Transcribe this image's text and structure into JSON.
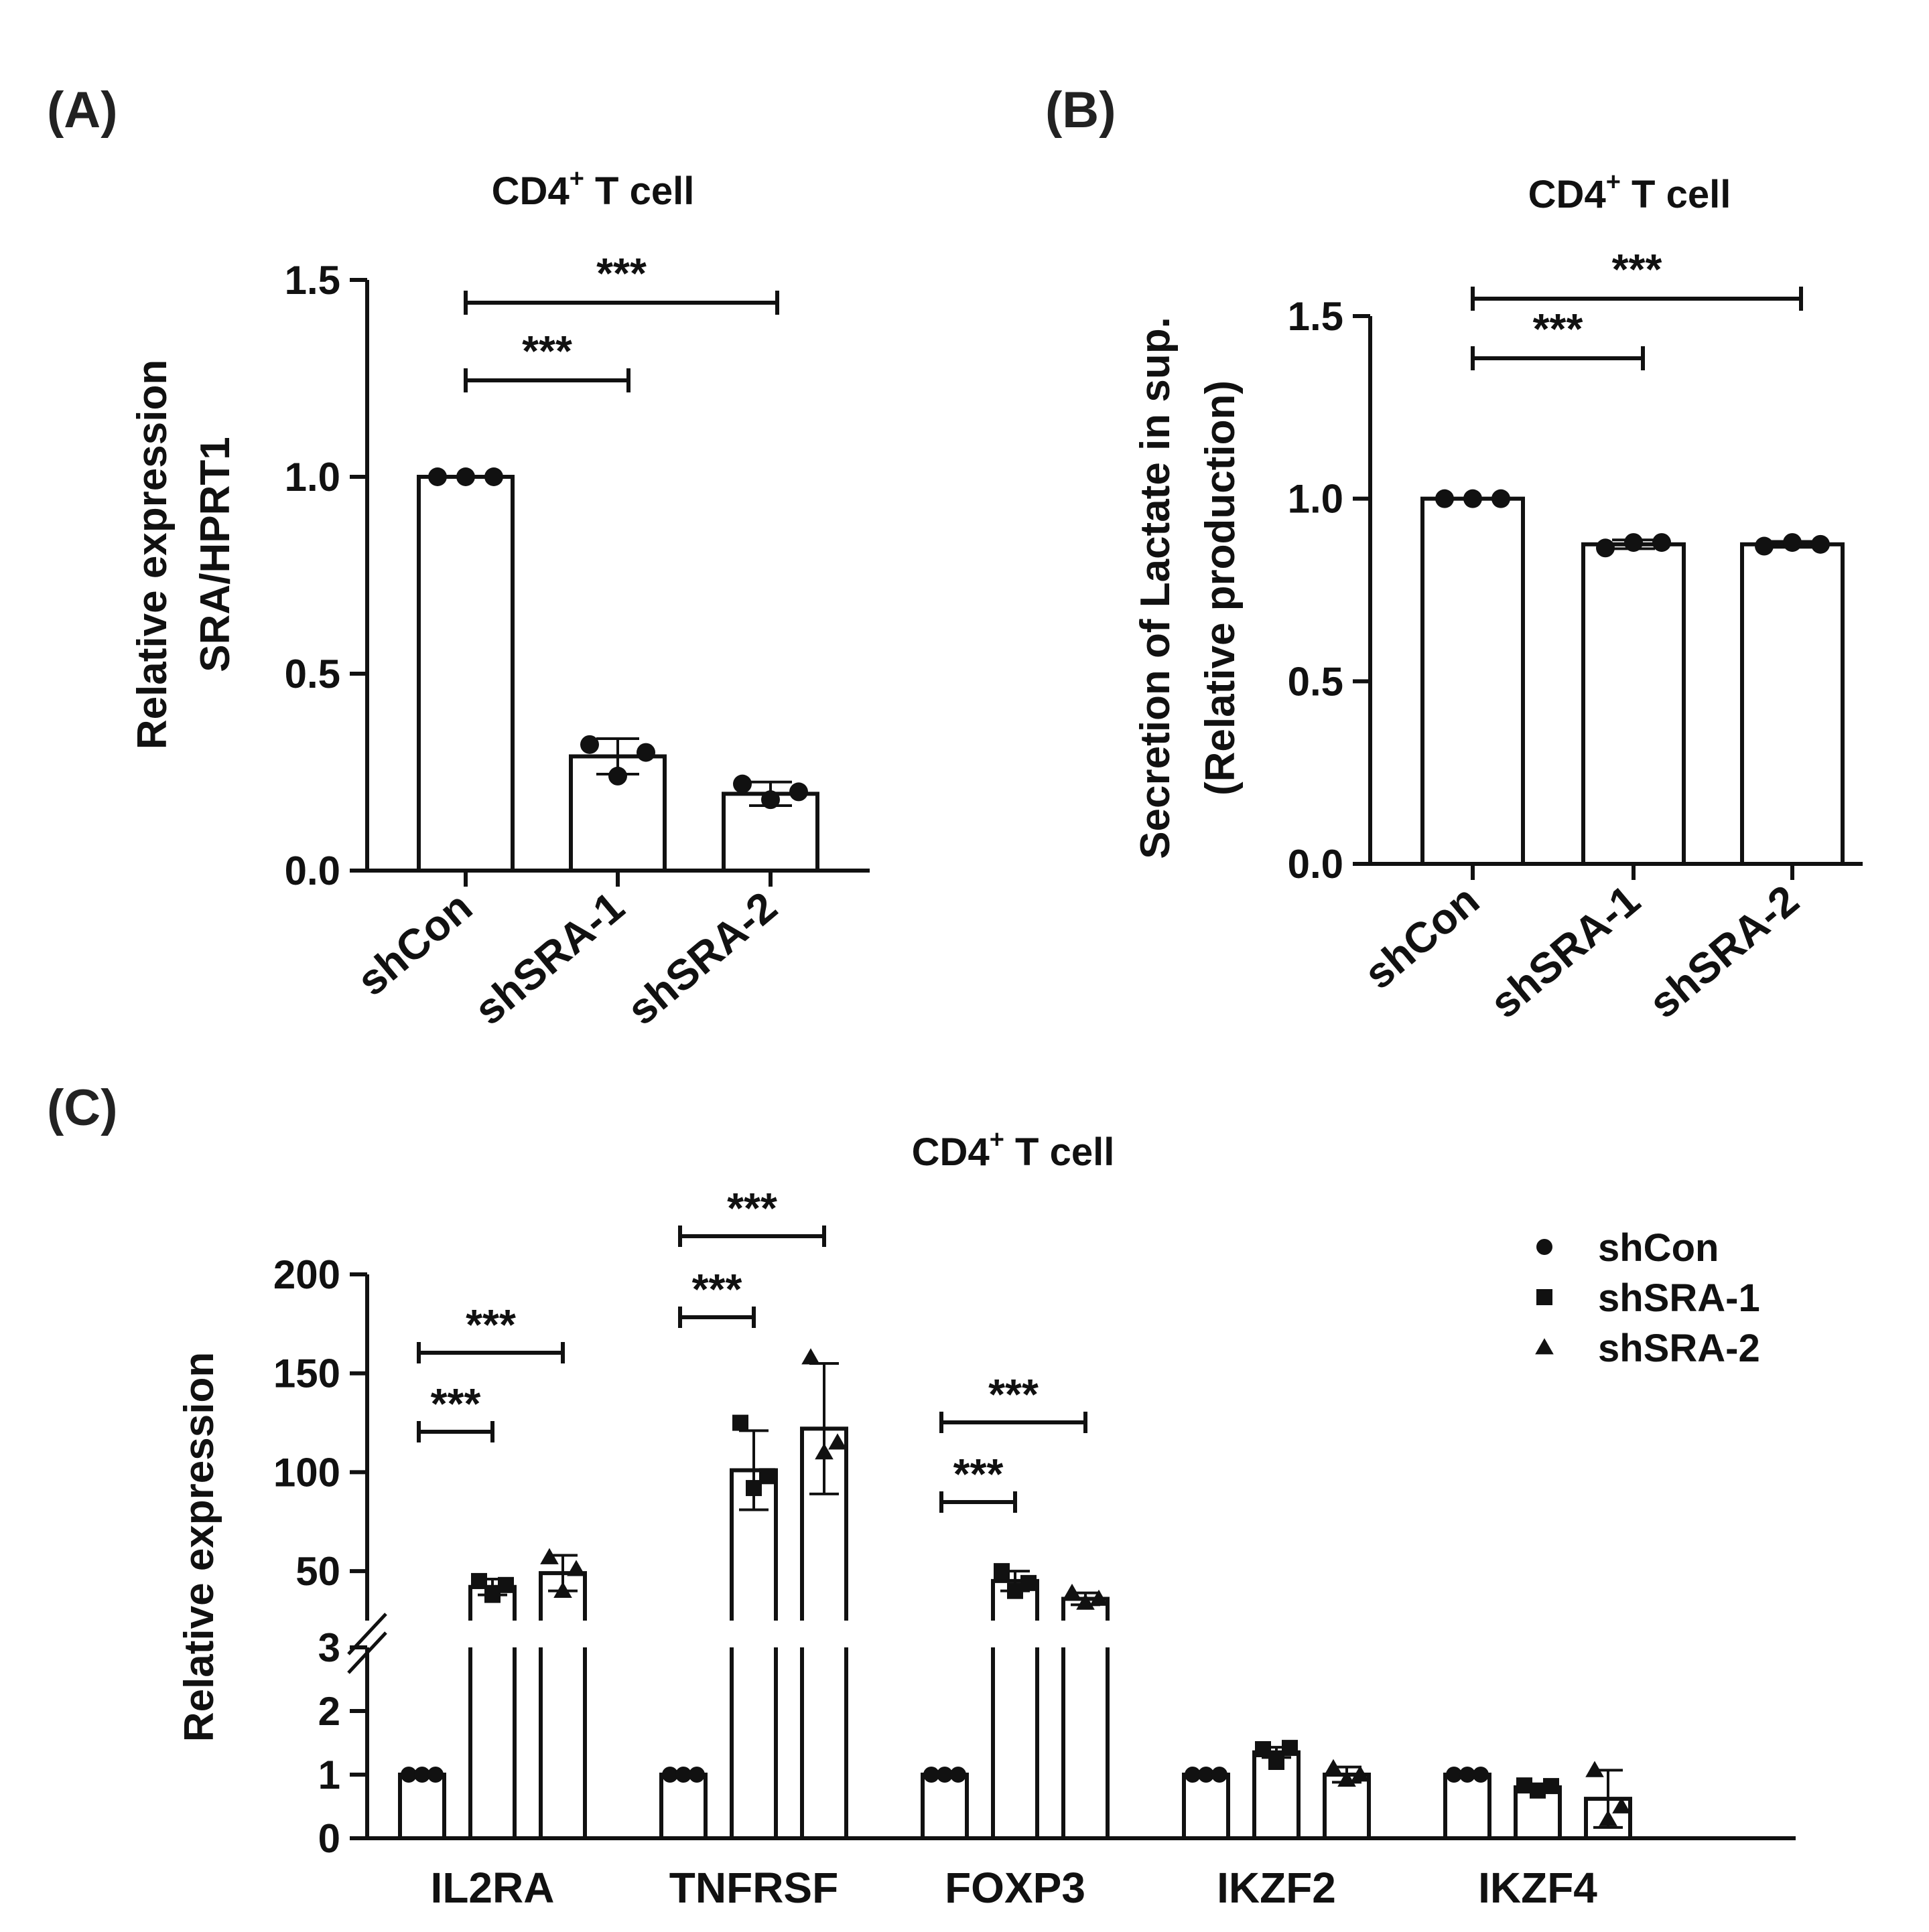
{
  "colors": {
    "ink": "#111111",
    "bar_fill": "#ffffff",
    "panel_label": "#222222"
  },
  "markers": {
    "shCon": "circle",
    "shSRA-1": "square",
    "shSRA-2": "triangle"
  },
  "chart_data": [
    {
      "panel": "(A)",
      "type": "bar",
      "title_main": "CD4",
      "title_sup": "+",
      "title_rest": " T cell",
      "ylabel_lines": [
        "Relative expression",
        "SRA/HPRT1"
      ],
      "xlabel": "",
      "ylim": [
        0,
        1.5
      ],
      "yticks": [
        "0.0",
        "0.5",
        "1.0",
        "1.5"
      ],
      "categories": [
        "shCon",
        "shSRA-1",
        "shSRA-2"
      ],
      "values": [
        1.0,
        0.29,
        0.195
      ],
      "errors": [
        0.0,
        0.045,
        0.03
      ],
      "points": [
        [
          1.0,
          1.0,
          1.0
        ],
        [
          0.32,
          0.24,
          0.3
        ],
        [
          0.22,
          0.18,
          0.2
        ]
      ],
      "significance": [
        {
          "from": "shCon",
          "to": "shSRA-1",
          "label": "***"
        },
        {
          "from": "shCon",
          "to": "shSRA-2",
          "label": "***"
        }
      ]
    },
    {
      "panel": "(B)",
      "type": "bar",
      "title_main": "CD4",
      "title_sup": "+",
      "title_rest": " T cell",
      "ylabel_lines": [
        "Secretion of Lactate in sup.",
        "(Relative production)"
      ],
      "xlabel": "",
      "ylim": [
        0,
        1.5
      ],
      "yticks": [
        "0.0",
        "0.5",
        "1.0",
        "1.5"
      ],
      "categories": [
        "shCon",
        "shSRA-1",
        "shSRA-2"
      ],
      "values": [
        1.0,
        0.875,
        0.875
      ],
      "errors": [
        0.0,
        0.012,
        0.008
      ],
      "points": [
        [
          1.0,
          1.0,
          1.0
        ],
        [
          0.865,
          0.88,
          0.88
        ],
        [
          0.87,
          0.88,
          0.875
        ]
      ],
      "significance": [
        {
          "from": "shCon",
          "to": "shSRA-1",
          "label": "***"
        },
        {
          "from": "shCon",
          "to": "shSRA-2",
          "label": "***"
        }
      ]
    },
    {
      "panel": "(C)",
      "type": "bar",
      "title_main": "CD4",
      "title_sup": "+",
      "title_rest": " T cell",
      "ylabel": "Relative expression",
      "xlabel": "",
      "axis_break": {
        "lower": [
          0,
          3
        ],
        "upper": [
          25,
          200
        ]
      },
      "yticks_lower": [
        "0",
        "1",
        "2",
        "3"
      ],
      "yticks_upper": [
        "50",
        "100",
        "150",
        "200"
      ],
      "categories": [
        "IL2RA",
        "TNFRSF",
        "FOXP3",
        "IKZF2",
        "IKZF4"
      ],
      "legend": [
        "shCon",
        "shSRA-1",
        "shSRA-2"
      ],
      "series": [
        {
          "name": "shCon",
          "values": [
            1.0,
            1.0,
            1.0,
            1.0,
            1.0
          ],
          "errors": [
            0,
            0,
            0,
            0,
            0
          ],
          "points": [
            [
              1,
              1,
              1
            ],
            [
              1,
              1,
              1
            ],
            [
              1,
              1,
              1
            ],
            [
              1,
              1,
              1
            ],
            [
              1,
              1,
              1
            ]
          ]
        },
        {
          "name": "shSRA-1",
          "values": [
            42,
            101,
            45,
            1.35,
            0.8
          ],
          "errors": [
            4,
            20,
            5,
            0.08,
            0.05
          ],
          "points": [
            [
              45,
              38,
              43
            ],
            [
              125,
              92,
              98
            ],
            [
              50,
              40,
              44
            ],
            [
              1.4,
              1.2,
              1.42
            ],
            [
              0.83,
              0.75,
              0.82
            ]
          ]
        },
        {
          "name": "shSRA-2",
          "values": [
            49,
            122,
            36,
            1.0,
            0.62
          ],
          "errors": [
            9,
            33,
            3,
            0.12,
            0.45
          ],
          "points": [
            [
              57,
              40,
              51
            ],
            [
              158,
              110,
              115
            ],
            [
              39,
              34,
              36
            ],
            [
              1.1,
              0.92,
              1.0
            ],
            [
              1.07,
              0.3,
              0.5
            ]
          ]
        }
      ],
      "significance": [
        {
          "category": "IL2RA",
          "from": "shCon",
          "to": "shSRA-1",
          "label": "***"
        },
        {
          "category": "IL2RA",
          "from": "shCon",
          "to": "shSRA-2",
          "label": "***"
        },
        {
          "category": "TNFRSF",
          "from": "shCon",
          "to": "shSRA-1",
          "label": "***"
        },
        {
          "category": "TNFRSF",
          "from": "shCon",
          "to": "shSRA-2",
          "label": "***"
        },
        {
          "category": "FOXP3",
          "from": "shCon",
          "to": "shSRA-1",
          "label": "***"
        },
        {
          "category": "FOXP3",
          "from": "shCon",
          "to": "shSRA-2",
          "label": "***"
        }
      ]
    }
  ]
}
